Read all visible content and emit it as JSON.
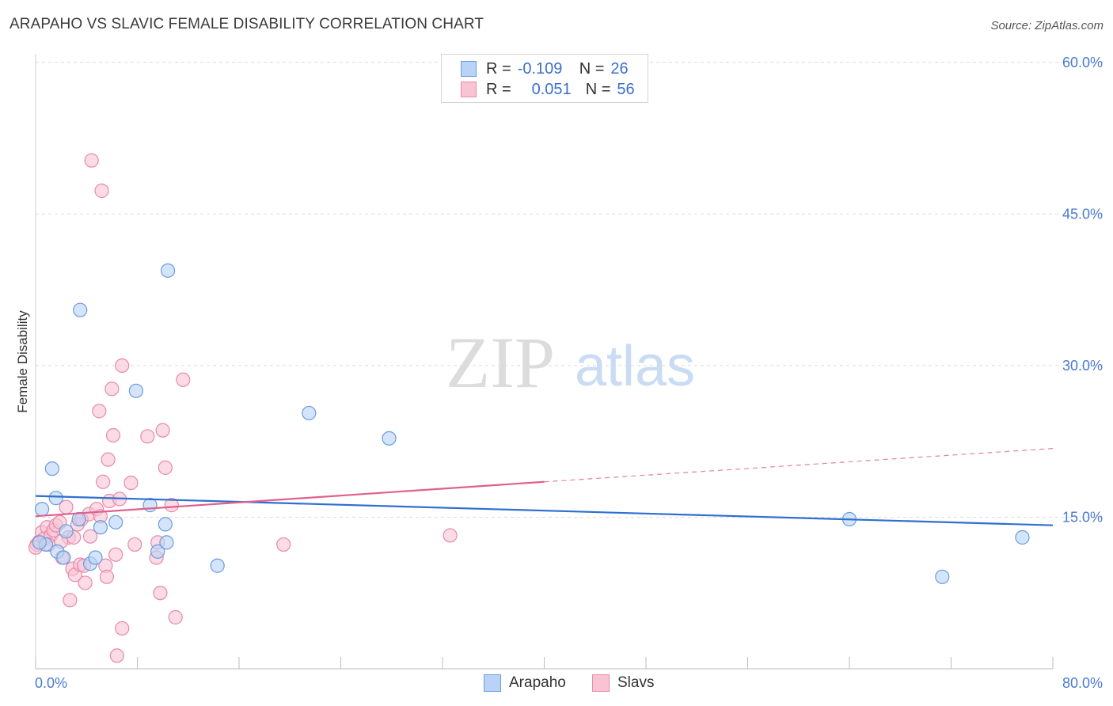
{
  "title": "ARAPAHO VS SLAVIC FEMALE DISABILITY CORRELATION CHART",
  "source": "Source: ZipAtlas.com",
  "watermark": {
    "zip": "ZIP",
    "atlas": "atlas"
  },
  "legend": {
    "rows": [
      {
        "r_label": "R =",
        "r_value": "-0.109",
        "n_label": "N =",
        "n_value": "26"
      },
      {
        "r_label": "R =",
        "r_value": "0.051",
        "n_label": "N =",
        "n_value": "56"
      }
    ]
  },
  "colors": {
    "arapaho_fill": "#b8d3f5",
    "arapaho_stroke": "#6a9be0",
    "arapaho_line": "#2f6fcf",
    "slavs_fill": "#f8c3d3",
    "slavs_stroke": "#e88aa8",
    "slavs_line": "#e0608e",
    "tick_blue": "#4a7bd0"
  },
  "chart_data": {
    "type": "scatter",
    "title": "ARAPAHO VS SLAVIC FEMALE DISABILITY CORRELATION CHART",
    "xlabel": "",
    "ylabel": "Female Disability",
    "xlim": [
      0,
      80
    ],
    "ylim": [
      0,
      62
    ],
    "x_tick_labels": [
      "0.0%",
      "80.0%"
    ],
    "y_ticks": [
      15,
      30,
      45,
      60
    ],
    "y_tick_labels": [
      "15.0%",
      "30.0%",
      "45.0%",
      "60.0%"
    ],
    "grid": true,
    "series": [
      {
        "name": "Arapaho",
        "r": -0.109,
        "n": 26,
        "trend": {
          "x0": 0,
          "y0": 17.1,
          "x1": 80,
          "y1": 14.2
        },
        "points": [
          [
            0.5,
            15.8
          ],
          [
            0.8,
            12.3
          ],
          [
            1.3,
            19.8
          ],
          [
            1.7,
            11.6
          ],
          [
            1.6,
            16.9
          ],
          [
            2.4,
            13.6
          ],
          [
            2.2,
            11.0
          ],
          [
            3.5,
            35.5
          ],
          [
            3.4,
            14.8
          ],
          [
            4.3,
            10.4
          ],
          [
            4.7,
            11.0
          ],
          [
            5.1,
            14.0
          ],
          [
            6.3,
            14.5
          ],
          [
            7.9,
            27.5
          ],
          [
            9.0,
            16.2
          ],
          [
            9.6,
            11.6
          ],
          [
            10.2,
            14.3
          ],
          [
            10.3,
            12.5
          ],
          [
            10.4,
            39.4
          ],
          [
            14.3,
            10.2
          ],
          [
            21.5,
            25.3
          ],
          [
            27.8,
            22.8
          ],
          [
            64.0,
            14.8
          ],
          [
            71.3,
            9.1
          ],
          [
            77.6,
            13.0
          ],
          [
            0.3,
            12.5
          ]
        ]
      },
      {
        "name": "Slavs",
        "r": 0.051,
        "n": 56,
        "trend": {
          "x0": 0,
          "y0": 15.1,
          "x1": 40,
          "y1": 18.5,
          "dash_x1": 80,
          "dash_y1": 21.8
        },
        "points": [
          [
            0.1,
            12.3
          ],
          [
            0.3,
            12.6
          ],
          [
            0.5,
            13.5
          ],
          [
            0.7,
            12.9
          ],
          [
            0.9,
            14.0
          ],
          [
            1.2,
            13.2
          ],
          [
            1.4,
            13.7
          ],
          [
            1.6,
            14.2
          ],
          [
            1.9,
            14.5
          ],
          [
            2.1,
            11.0
          ],
          [
            2.4,
            16.0
          ],
          [
            2.6,
            13.0
          ],
          [
            2.7,
            6.8
          ],
          [
            2.9,
            9.9
          ],
          [
            3.1,
            9.3
          ],
          [
            3.3,
            14.3
          ],
          [
            3.5,
            10.3
          ],
          [
            3.6,
            14.8
          ],
          [
            3.8,
            10.2
          ],
          [
            3.9,
            8.5
          ],
          [
            4.2,
            15.3
          ],
          [
            4.3,
            13.1
          ],
          [
            4.4,
            50.3
          ],
          [
            4.8,
            15.8
          ],
          [
            5.0,
            25.5
          ],
          [
            5.1,
            15.1
          ],
          [
            5.2,
            47.3
          ],
          [
            5.3,
            18.5
          ],
          [
            5.5,
            10.2
          ],
          [
            5.6,
            9.1
          ],
          [
            5.7,
            20.7
          ],
          [
            5.8,
            16.6
          ],
          [
            6.0,
            27.7
          ],
          [
            6.1,
            23.1
          ],
          [
            6.3,
            11.3
          ],
          [
            6.4,
            1.3
          ],
          [
            6.6,
            16.8
          ],
          [
            6.8,
            30.0
          ],
          [
            6.8,
            4.0
          ],
          [
            7.5,
            18.4
          ],
          [
            7.8,
            12.3
          ],
          [
            8.8,
            23.0
          ],
          [
            9.5,
            11.0
          ],
          [
            9.6,
            12.5
          ],
          [
            9.8,
            7.5
          ],
          [
            10.0,
            23.6
          ],
          [
            10.2,
            19.9
          ],
          [
            10.7,
            16.2
          ],
          [
            11.0,
            5.1
          ],
          [
            11.6,
            28.6
          ],
          [
            19.5,
            12.3
          ],
          [
            32.6,
            13.2
          ],
          [
            0.0,
            12.0
          ],
          [
            1.0,
            12.3
          ],
          [
            2.0,
            12.6
          ],
          [
            3.0,
            13.0
          ]
        ]
      }
    ]
  },
  "bottom_legend": {
    "arapaho": "Arapaho",
    "slavs": "Slavs"
  }
}
